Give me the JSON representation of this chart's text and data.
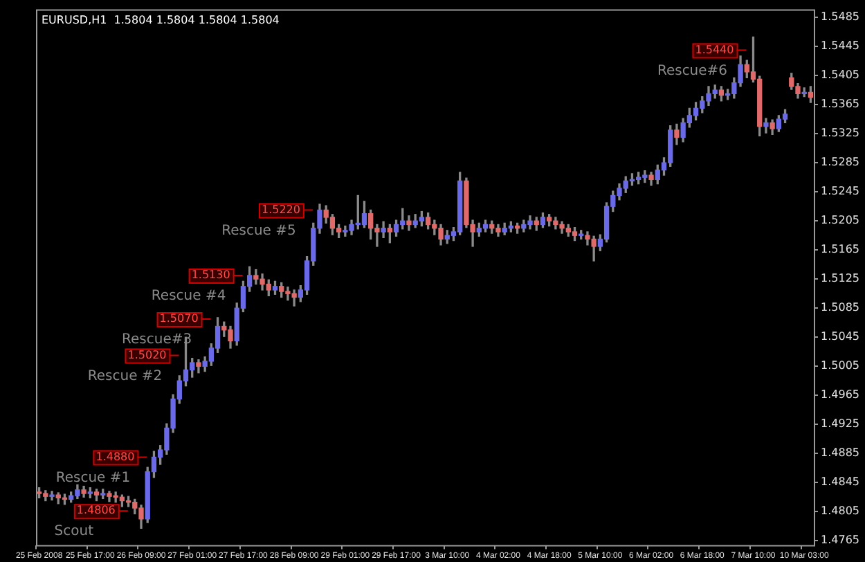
{
  "chart_data": {
    "type": "candlestick",
    "title": "EURUSD,H1  1.5804 1.5804 1.5804 1.5804",
    "categories": [
      "25 Feb 2008",
      null,
      null,
      null,
      null,
      null,
      null,
      null,
      "25 Feb 17:00",
      null,
      null,
      null,
      null,
      null,
      null,
      null,
      "26 Feb 09:00",
      null,
      null,
      null,
      null,
      null,
      null,
      null,
      "27 Feb 01:00",
      null,
      null,
      null,
      null,
      null,
      null,
      null,
      "27 Feb 17:00",
      null,
      null,
      null,
      null,
      null,
      null,
      null,
      "28 Feb 09:00",
      null,
      null,
      null,
      null,
      null,
      null,
      null,
      "29 Feb 01:00",
      null,
      null,
      null,
      null,
      null,
      null,
      null,
      "29 Feb 17:00",
      null,
      null,
      null,
      null,
      null,
      null,
      null,
      "3 Mar 10:00",
      null,
      null,
      null,
      null,
      null,
      null,
      null,
      "4 Mar 02:00",
      null,
      null,
      null,
      null,
      null,
      null,
      null,
      "4 Mar 18:00",
      null,
      null,
      null,
      null,
      null,
      null,
      null,
      "5 Mar 10:00",
      null,
      null,
      null,
      null,
      null,
      null,
      null,
      "6 Mar 02:00",
      null,
      null,
      null,
      null,
      null,
      null,
      null,
      "6 Mar 18:00",
      null,
      null,
      null,
      null,
      null,
      null,
      null,
      "7 Mar 10:00",
      null,
      null,
      null,
      null,
      null,
      null,
      null,
      "10 Mar 03:00",
      null
    ],
    "ohlc": [
      [
        1.4832,
        1.4838,
        1.4824,
        1.483
      ],
      [
        1.483,
        1.4834,
        1.482,
        1.4826
      ],
      [
        1.4826,
        1.4833,
        1.4821,
        1.4828
      ],
      [
        1.4828,
        1.4831,
        1.4816,
        1.4824
      ],
      [
        1.4824,
        1.4829,
        1.4815,
        1.4822
      ],
      [
        1.4822,
        1.4832,
        1.4818,
        1.4827
      ],
      [
        1.4827,
        1.4842,
        1.4823,
        1.4835
      ],
      [
        1.4835,
        1.484,
        1.4825,
        1.483
      ],
      [
        1.483,
        1.4838,
        1.4824,
        1.4832
      ],
      [
        1.4832,
        1.4836,
        1.482,
        1.4828
      ],
      [
        1.4828,
        1.4836,
        1.4823,
        1.483
      ],
      [
        1.483,
        1.4833,
        1.4819,
        1.4826
      ],
      [
        1.4826,
        1.4832,
        1.4818,
        1.4825
      ],
      [
        1.4825,
        1.4828,
        1.4812,
        1.482
      ],
      [
        1.482,
        1.4826,
        1.4812,
        1.4818
      ],
      [
        1.4818,
        1.4822,
        1.4802,
        1.481
      ],
      [
        1.481,
        1.4814,
        1.4782,
        1.4795
      ],
      [
        1.4795,
        1.4866,
        1.479,
        1.486
      ],
      [
        1.486,
        1.4888,
        1.4852,
        1.488
      ],
      [
        1.488,
        1.4896,
        1.487,
        1.489
      ],
      [
        1.489,
        1.4926,
        1.4884,
        1.492
      ],
      [
        1.492,
        1.4966,
        1.4914,
        1.496
      ],
      [
        1.496,
        1.4992,
        1.4954,
        1.4985
      ],
      [
        1.4985,
        1.5045,
        1.4978,
        1.5
      ],
      [
        1.5,
        1.5016,
        1.499,
        1.501
      ],
      [
        1.501,
        1.5014,
        1.4996,
        1.5005
      ],
      [
        1.5005,
        1.5018,
        1.4998,
        1.5012
      ],
      [
        1.5012,
        1.5036,
        1.5006,
        1.503
      ],
      [
        1.503,
        1.5072,
        1.5024,
        1.506
      ],
      [
        1.506,
        1.5066,
        1.5046,
        1.5055
      ],
      [
        1.5055,
        1.506,
        1.503,
        1.504
      ],
      [
        1.504,
        1.5092,
        1.5034,
        1.5085
      ],
      [
        1.5085,
        1.5122,
        1.508,
        1.5115
      ],
      [
        1.5115,
        1.5142,
        1.5108,
        1.513
      ],
      [
        1.513,
        1.5138,
        1.5118,
        1.5125
      ],
      [
        1.5125,
        1.5132,
        1.511,
        1.5118
      ],
      [
        1.5118,
        1.5124,
        1.5102,
        1.511
      ],
      [
        1.511,
        1.5122,
        1.5104,
        1.5115
      ],
      [
        1.5115,
        1.512,
        1.51,
        1.5108
      ],
      [
        1.5108,
        1.5114,
        1.5096,
        1.5105
      ],
      [
        1.5105,
        1.511,
        1.5088,
        1.51
      ],
      [
        1.51,
        1.5116,
        1.5094,
        1.511
      ],
      [
        1.511,
        1.5156,
        1.5104,
        1.515
      ],
      [
        1.515,
        1.5202,
        1.5144,
        1.5195
      ],
      [
        1.5195,
        1.5228,
        1.5188,
        1.522
      ],
      [
        1.522,
        1.5226,
        1.5202,
        1.521
      ],
      [
        1.521,
        1.5214,
        1.5186,
        1.5195
      ],
      [
        1.5195,
        1.52,
        1.5182,
        1.519
      ],
      [
        1.519,
        1.5198,
        1.5184,
        1.5192
      ],
      [
        1.5192,
        1.5206,
        1.5186,
        1.52
      ],
      [
        1.52,
        1.524,
        1.5194,
        1.52
      ],
      [
        1.52,
        1.5232,
        1.5196,
        1.5215
      ],
      [
        1.5215,
        1.522,
        1.518,
        1.5195
      ],
      [
        1.5195,
        1.52,
        1.517,
        1.519
      ],
      [
        1.519,
        1.5204,
        1.5182,
        1.5195
      ],
      [
        1.5195,
        1.52,
        1.5175,
        1.519
      ],
      [
        1.519,
        1.5206,
        1.5184,
        1.52
      ],
      [
        1.52,
        1.5222,
        1.5194,
        1.5205
      ],
      [
        1.5205,
        1.5212,
        1.5192,
        1.52
      ],
      [
        1.52,
        1.5214,
        1.5196,
        1.5205
      ],
      [
        1.5205,
        1.5218,
        1.5198,
        1.521
      ],
      [
        1.521,
        1.5216,
        1.5194,
        1.52
      ],
      [
        1.52,
        1.5206,
        1.5186,
        1.5195
      ],
      [
        1.5195,
        1.52,
        1.5172,
        1.518
      ],
      [
        1.518,
        1.5192,
        1.5174,
        1.5185
      ],
      [
        1.5185,
        1.5196,
        1.5178,
        1.519
      ],
      [
        1.519,
        1.5272,
        1.5186,
        1.526
      ],
      [
        1.526,
        1.5264,
        1.5196,
        1.52
      ],
      [
        1.52,
        1.5206,
        1.517,
        1.519
      ],
      [
        1.519,
        1.5202,
        1.5184,
        1.5195
      ],
      [
        1.5195,
        1.5206,
        1.519,
        1.52
      ],
      [
        1.52,
        1.5205,
        1.5188,
        1.5195
      ],
      [
        1.5195,
        1.52,
        1.5184,
        1.519
      ],
      [
        1.519,
        1.5202,
        1.5186,
        1.5195
      ],
      [
        1.5195,
        1.5204,
        1.519,
        1.5198
      ],
      [
        1.5198,
        1.5202,
        1.5188,
        1.5195
      ],
      [
        1.5195,
        1.5206,
        1.519,
        1.52
      ],
      [
        1.52,
        1.5212,
        1.5194,
        1.5205
      ],
      [
        1.5205,
        1.521,
        1.5192,
        1.52
      ],
      [
        1.52,
        1.5216,
        1.5196,
        1.521
      ],
      [
        1.521,
        1.5214,
        1.5198,
        1.5205
      ],
      [
        1.5205,
        1.521,
        1.5194,
        1.52
      ],
      [
        1.52,
        1.5204,
        1.5188,
        1.5195
      ],
      [
        1.5195,
        1.52,
        1.5184,
        1.519
      ],
      [
        1.519,
        1.5196,
        1.5178,
        1.5185
      ],
      [
        1.5185,
        1.5192,
        1.518,
        1.5185
      ],
      [
        1.5185,
        1.519,
        1.5172,
        1.518
      ],
      [
        1.518,
        1.5184,
        1.515,
        1.517
      ],
      [
        1.517,
        1.5186,
        1.5164,
        1.518
      ],
      [
        1.518,
        1.523,
        1.5176,
        1.5225
      ],
      [
        1.5225,
        1.5246,
        1.5218,
        1.524
      ],
      [
        1.524,
        1.5256,
        1.5234,
        1.525
      ],
      [
        1.525,
        1.5266,
        1.5244,
        1.526
      ],
      [
        1.526,
        1.527,
        1.5254,
        1.5262
      ],
      [
        1.5262,
        1.5272,
        1.5256,
        1.5265
      ],
      [
        1.5265,
        1.5274,
        1.5258,
        1.5268
      ],
      [
        1.5268,
        1.5272,
        1.5254,
        1.5262
      ],
      [
        1.5262,
        1.5282,
        1.5256,
        1.5275
      ],
      [
        1.5275,
        1.5292,
        1.5268,
        1.5285
      ],
      [
        1.5285,
        1.5336,
        1.528,
        1.533
      ],
      [
        1.533,
        1.5338,
        1.531,
        1.532
      ],
      [
        1.532,
        1.5346,
        1.5314,
        1.534
      ],
      [
        1.534,
        1.536,
        1.5334,
        1.535
      ],
      [
        1.535,
        1.5368,
        1.5344,
        1.536
      ],
      [
        1.536,
        1.5376,
        1.5354,
        1.537
      ],
      [
        1.537,
        1.539,
        1.5364,
        1.538
      ],
      [
        1.538,
        1.5392,
        1.5374,
        1.5385
      ],
      [
        1.5385,
        1.539,
        1.537,
        1.5378
      ],
      [
        1.5378,
        1.5386,
        1.5372,
        1.538
      ],
      [
        1.538,
        1.5402,
        1.5374,
        1.5395
      ],
      [
        1.5395,
        1.5432,
        1.539,
        1.542
      ],
      [
        1.542,
        1.5426,
        1.5402,
        1.541
      ],
      [
        1.541,
        1.5458,
        1.5396,
        1.54
      ],
      [
        1.54,
        1.5404,
        1.5322,
        1.5335
      ],
      [
        1.5335,
        1.5346,
        1.5326,
        1.534
      ],
      [
        1.534,
        1.5344,
        1.5324,
        1.5332
      ],
      [
        1.5332,
        1.535,
        1.5328,
        1.5345
      ],
      [
        1.5345,
        1.5358,
        1.534,
        1.5352
      ],
      [
        1.5402,
        1.5408,
        1.5386,
        1.539
      ],
      [
        1.539,
        1.5394,
        1.5374,
        1.538
      ],
      [
        1.538,
        1.5388,
        1.5376,
        1.5382
      ],
      [
        1.5382,
        1.539,
        1.5368,
        1.5375
      ]
    ],
    "ylim": [
      1.4759,
      1.5496
    ],
    "yticks": [
      1.4765,
      1.4805,
      1.4845,
      1.4885,
      1.4925,
      1.4965,
      1.5005,
      1.5045,
      1.5085,
      1.5125,
      1.5165,
      1.5205,
      1.5245,
      1.5285,
      1.5325,
      1.5365,
      1.5405,
      1.5445,
      1.5485
    ],
    "grid": false,
    "legend": false,
    "annotations": [
      {
        "text": "1.4806",
        "y": 1.4806
      },
      {
        "text": "1.4880",
        "y": 1.488
      },
      {
        "text": "1.5020",
        "y": 1.502
      },
      {
        "text": "1.5070",
        "y": 1.507
      },
      {
        "text": "1.5130",
        "y": 1.513
      },
      {
        "text": "1.5220",
        "y": 1.522
      },
      {
        "text": "1.5440",
        "y": 1.544
      },
      "Scout",
      "Rescue #1",
      "Rescue #2",
      "Rescue#3",
      "Rescue #4",
      "Rescue #5",
      "Rescue#6"
    ]
  }
}
